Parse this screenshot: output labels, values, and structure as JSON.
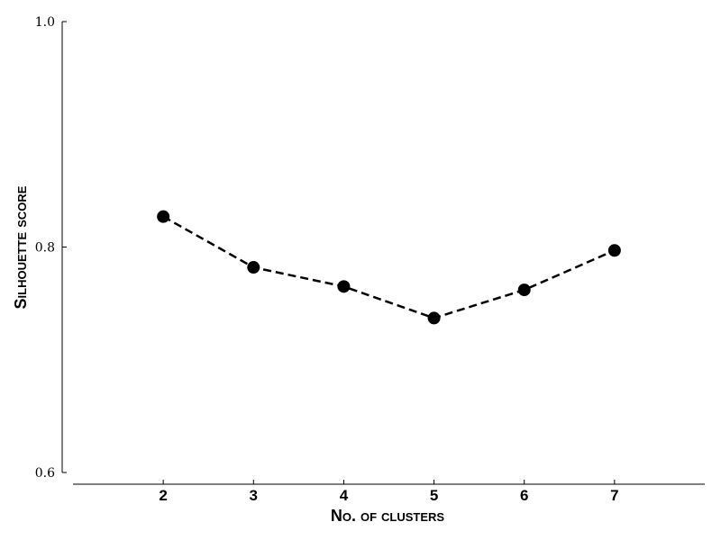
{
  "chart_data": {
    "type": "line",
    "x": [
      2,
      3,
      4,
      5,
      6,
      7
    ],
    "series": [
      {
        "values": [
          0.827,
          0.782,
          0.765,
          0.737,
          0.762,
          0.797
        ]
      }
    ],
    "xlabel": "No. of clusters",
    "ylabel": "Silhouette score",
    "xlim": [
      1,
      8
    ],
    "ylim": [
      0.6,
      1.0
    ],
    "y_ticks": [
      "0.6",
      "0.8",
      "1.0"
    ],
    "x_ticks": [
      "2",
      "3",
      "4",
      "5",
      "6",
      "7"
    ],
    "line_style": "dashed",
    "marker": "circle",
    "color": "#000000",
    "grid": false
  }
}
